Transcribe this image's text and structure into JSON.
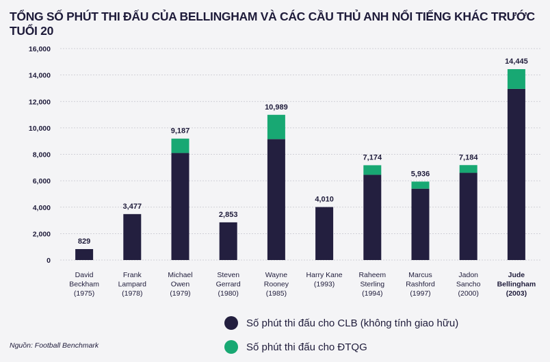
{
  "chart_data": {
    "type": "bar",
    "stacked": true,
    "title": "TỔNG SỐ PHÚT THI ĐẤU CỦA BELLINGHAM VÀ CÁC CẦU THỦ ANH NỔI TIẾNG KHÁC TRƯỚC TUỔI 20",
    "categories": [
      [
        "David",
        "Beckham",
        "(1975)"
      ],
      [
        "Frank",
        "Lampard",
        "(1978)"
      ],
      [
        "Michael",
        "Owen",
        "(1979)"
      ],
      [
        "Steven",
        "Gerrard",
        "(1980)"
      ],
      [
        "Wayne",
        "Rooney",
        "(1985)"
      ],
      [
        "Harry Kane",
        "(1993)"
      ],
      [
        "Raheem",
        "Sterling",
        "(1994)"
      ],
      [
        "Marcus",
        "Rashford",
        "(1997)"
      ],
      [
        "Jadon",
        "Sancho",
        "(2000)"
      ],
      [
        "Jude",
        "Bellingham",
        "(2003)"
      ]
    ],
    "highlight_index": 9,
    "series": [
      {
        "name": "Số phút thi đấu cho CLB (không tính giao hữu)",
        "color": "#231f3f",
        "values": [
          829,
          3477,
          8100,
          2853,
          9150,
          4010,
          6450,
          5400,
          6600,
          12950
        ]
      },
      {
        "name": "Số phút thi đấu cho ĐTQG",
        "color": "#18a873",
        "values": [
          0,
          0,
          1087,
          0,
          1839,
          0,
          724,
          536,
          584,
          1495
        ]
      }
    ],
    "totals": [
      "829",
      "3,477",
      "9,187",
      "2,853",
      "10,989",
      "4,010",
      "7,174",
      "5,936",
      "7,184",
      "14,445"
    ],
    "ylim": [
      0,
      16000
    ],
    "yticks": [
      0,
      2000,
      4000,
      6000,
      8000,
      10000,
      12000,
      14000,
      16000
    ],
    "ytick_labels": [
      "0",
      "2,000",
      "4,000",
      "6,000",
      "8,000",
      "10,000",
      "12,000",
      "14,000",
      "16,000"
    ],
    "grid": true,
    "xlabel": "",
    "ylabel": ""
  },
  "legend": [
    {
      "label": "Số phút thi đấu cho CLB (không tính giao hữu)",
      "color": "#231f3f"
    },
    {
      "label": "Số phút thi đấu cho ĐTQG",
      "color": "#18a873"
    }
  ],
  "source": "Nguồn: Football Benchmark"
}
